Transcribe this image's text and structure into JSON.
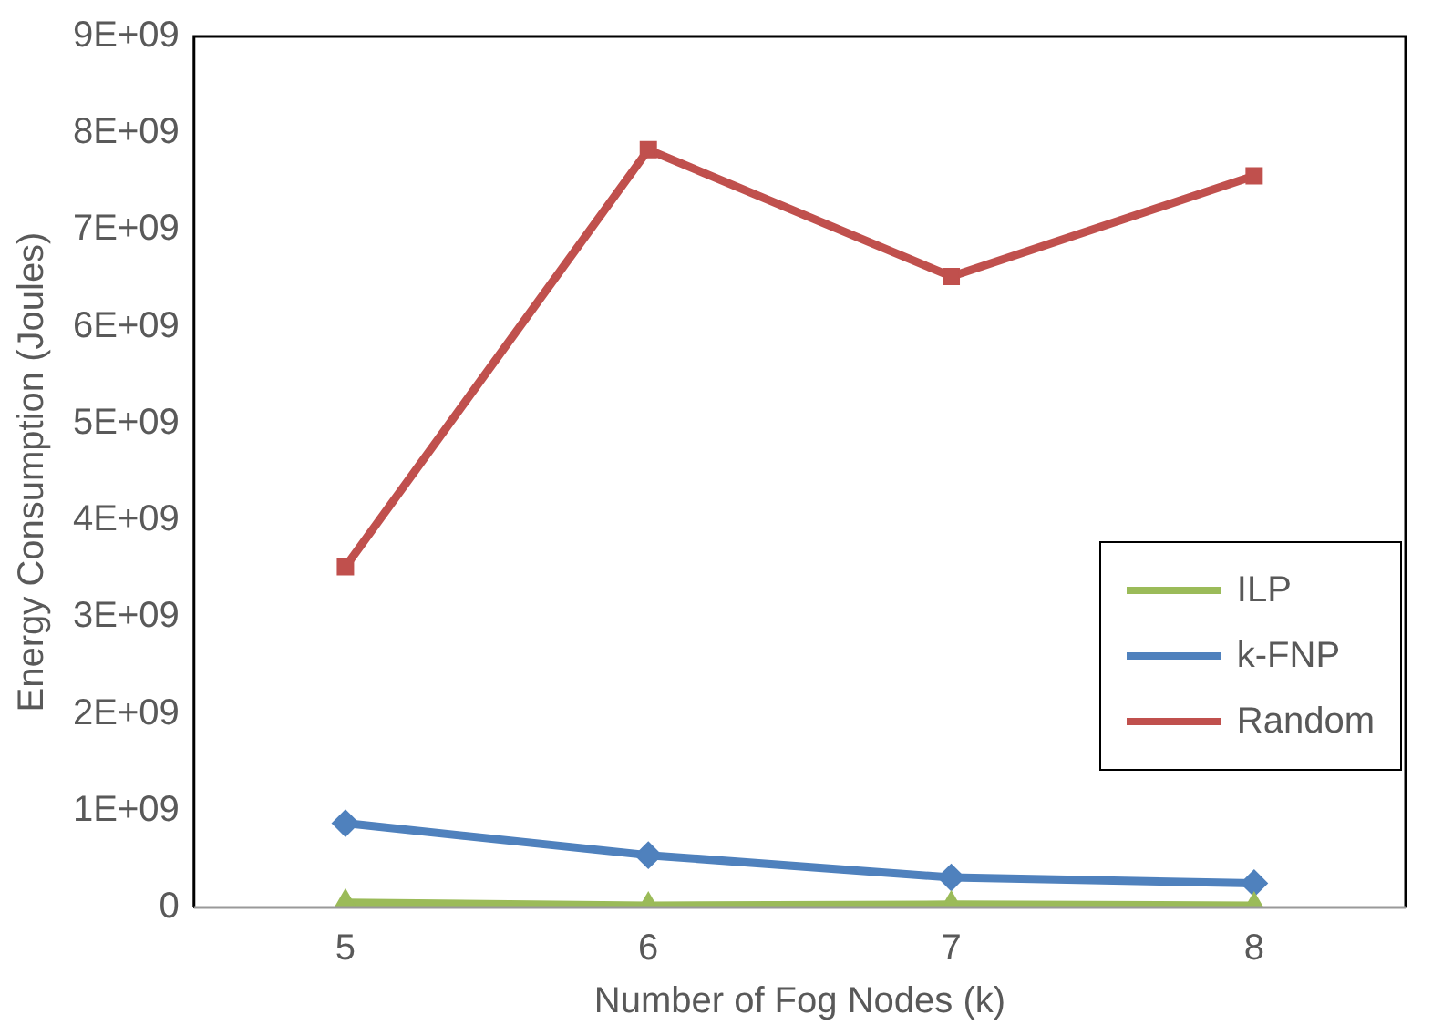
{
  "chart_data": {
    "type": "line",
    "xlabel": "Number of Fog Nodes (k)",
    "ylabel": "Energy Consumption (Joules)",
    "categories": [
      "5",
      "6",
      "7",
      "8"
    ],
    "series": [
      {
        "name": "ILP",
        "color": "#9bbb59",
        "marker": "triangle",
        "values": [
          50000000,
          20000000,
          30000000,
          20000000
        ]
      },
      {
        "name": "k-FNP",
        "color": "#4f81bd",
        "marker": "diamond",
        "values": [
          870000000,
          540000000,
          310000000,
          250000000
        ]
      },
      {
        "name": "Random",
        "color": "#c0504d",
        "marker": "square",
        "values": [
          3520000000,
          7830000000,
          6520000000,
          7560000000
        ]
      }
    ],
    "ylim": [
      0,
      9000000000
    ],
    "yticks": [
      0,
      {
        "value": 1000000000,
        "label": "1E+09"
      },
      {
        "value": 2000000000,
        "label": "2E+09"
      },
      {
        "value": 3000000000,
        "label": "3E+09"
      },
      {
        "value": 4000000000,
        "label": "4E+09"
      },
      {
        "value": 5000000000,
        "label": "5E+09"
      },
      {
        "value": 6000000000,
        "label": "6E+09"
      },
      {
        "value": 7000000000,
        "label": "7E+09"
      },
      {
        "value": 8000000000,
        "label": "8E+09"
      },
      {
        "value": 9000000000,
        "label": "9E+09"
      }
    ],
    "grid": false,
    "legend": "right"
  }
}
